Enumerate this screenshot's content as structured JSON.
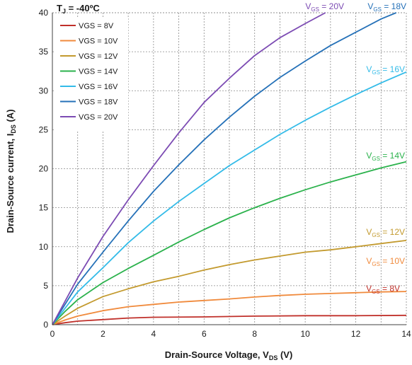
{
  "chart_data": {
    "type": "line",
    "title": "",
    "xlabel": "Drain-Source Voltage, V_DS (V)",
    "ylabel": "Drain-Source current, I_DS (A)",
    "xlim": [
      0,
      14
    ],
    "ylim": [
      0,
      40
    ],
    "xticks": [
      0,
      2,
      4,
      6,
      8,
      10,
      12,
      14
    ],
    "yticks": [
      0,
      5,
      10,
      15,
      20,
      25,
      30,
      35,
      40
    ],
    "grid": "dotted",
    "legend_position": "top-left",
    "temperature_label": "T_J = -40ºC",
    "series": [
      {
        "name": "VGS = 8V",
        "color": "#c0302a",
        "annotation": "V_GS = 8V",
        "x": [
          0,
          0.5,
          1,
          2,
          3,
          4,
          6,
          8,
          10,
          12,
          14
        ],
        "y": [
          0,
          0.25,
          0.45,
          0.65,
          0.85,
          0.95,
          1.0,
          1.1,
          1.15,
          1.15,
          1.2
        ]
      },
      {
        "name": "VGS = 10V",
        "color": "#f08a3c",
        "annotation": "V_GS = 10V",
        "x": [
          0,
          0.5,
          1,
          2,
          3,
          4,
          5,
          6,
          7,
          8,
          9,
          10,
          11,
          12,
          13,
          14
        ],
        "y": [
          0,
          0.6,
          1.1,
          1.8,
          2.3,
          2.6,
          2.9,
          3.1,
          3.3,
          3.55,
          3.75,
          3.9,
          4.0,
          4.1,
          4.2,
          4.25
        ]
      },
      {
        "name": "VGS = 12V",
        "color": "#c39a2e",
        "annotation": "V_GS = 12V",
        "x": [
          0,
          0.5,
          1,
          2,
          3,
          4,
          5,
          6,
          7,
          8,
          9,
          10,
          11,
          12,
          13,
          14
        ],
        "y": [
          0,
          1.1,
          2.1,
          3.6,
          4.6,
          5.5,
          6.2,
          7.0,
          7.7,
          8.3,
          8.8,
          9.3,
          9.6,
          10.0,
          10.4,
          10.8
        ]
      },
      {
        "name": "VGS = 14V",
        "color": "#2bb24c",
        "annotation": "V_GS = 14V",
        "x": [
          0,
          0.5,
          1,
          2,
          3,
          4,
          5,
          6,
          7,
          8,
          9,
          10,
          11,
          12,
          13,
          14
        ],
        "y": [
          0,
          1.7,
          3.2,
          5.4,
          7.2,
          8.9,
          10.6,
          12.2,
          13.7,
          15.0,
          16.2,
          17.3,
          18.3,
          19.2,
          20.1,
          20.9
        ]
      },
      {
        "name": "VGS = 16V",
        "color": "#33bbe8",
        "annotation": "V_GS = 16V",
        "x": [
          0,
          1,
          2,
          3,
          4,
          5,
          6,
          7,
          8,
          9,
          10,
          11,
          12,
          13,
          14
        ],
        "y": [
          0,
          4.2,
          7.3,
          10.5,
          13.3,
          15.8,
          18.1,
          20.4,
          22.4,
          24.4,
          26.2,
          27.9,
          29.5,
          31.0,
          32.4
        ]
      },
      {
        "name": "VGS = 18V",
        "color": "#2571b8",
        "annotation": "V_GS = 18V",
        "x": [
          0,
          1,
          2,
          3,
          4,
          5,
          6,
          7,
          8,
          9,
          10,
          11,
          12,
          13,
          13.6
        ],
        "y": [
          0,
          5.2,
          9.3,
          13.3,
          17.1,
          20.5,
          23.7,
          26.6,
          29.3,
          31.7,
          33.8,
          35.8,
          37.5,
          39.2,
          40.0
        ]
      },
      {
        "name": "VGS = 20V",
        "color": "#7c4bb3",
        "annotation": "V_GS = 20V",
        "x": [
          0,
          1,
          2,
          3,
          4,
          5,
          6,
          7,
          8,
          9,
          10,
          10.8
        ],
        "y": [
          0,
          6.0,
          11.3,
          16.0,
          20.4,
          24.6,
          28.5,
          31.6,
          34.5,
          36.8,
          38.6,
          40.0
        ]
      }
    ]
  }
}
